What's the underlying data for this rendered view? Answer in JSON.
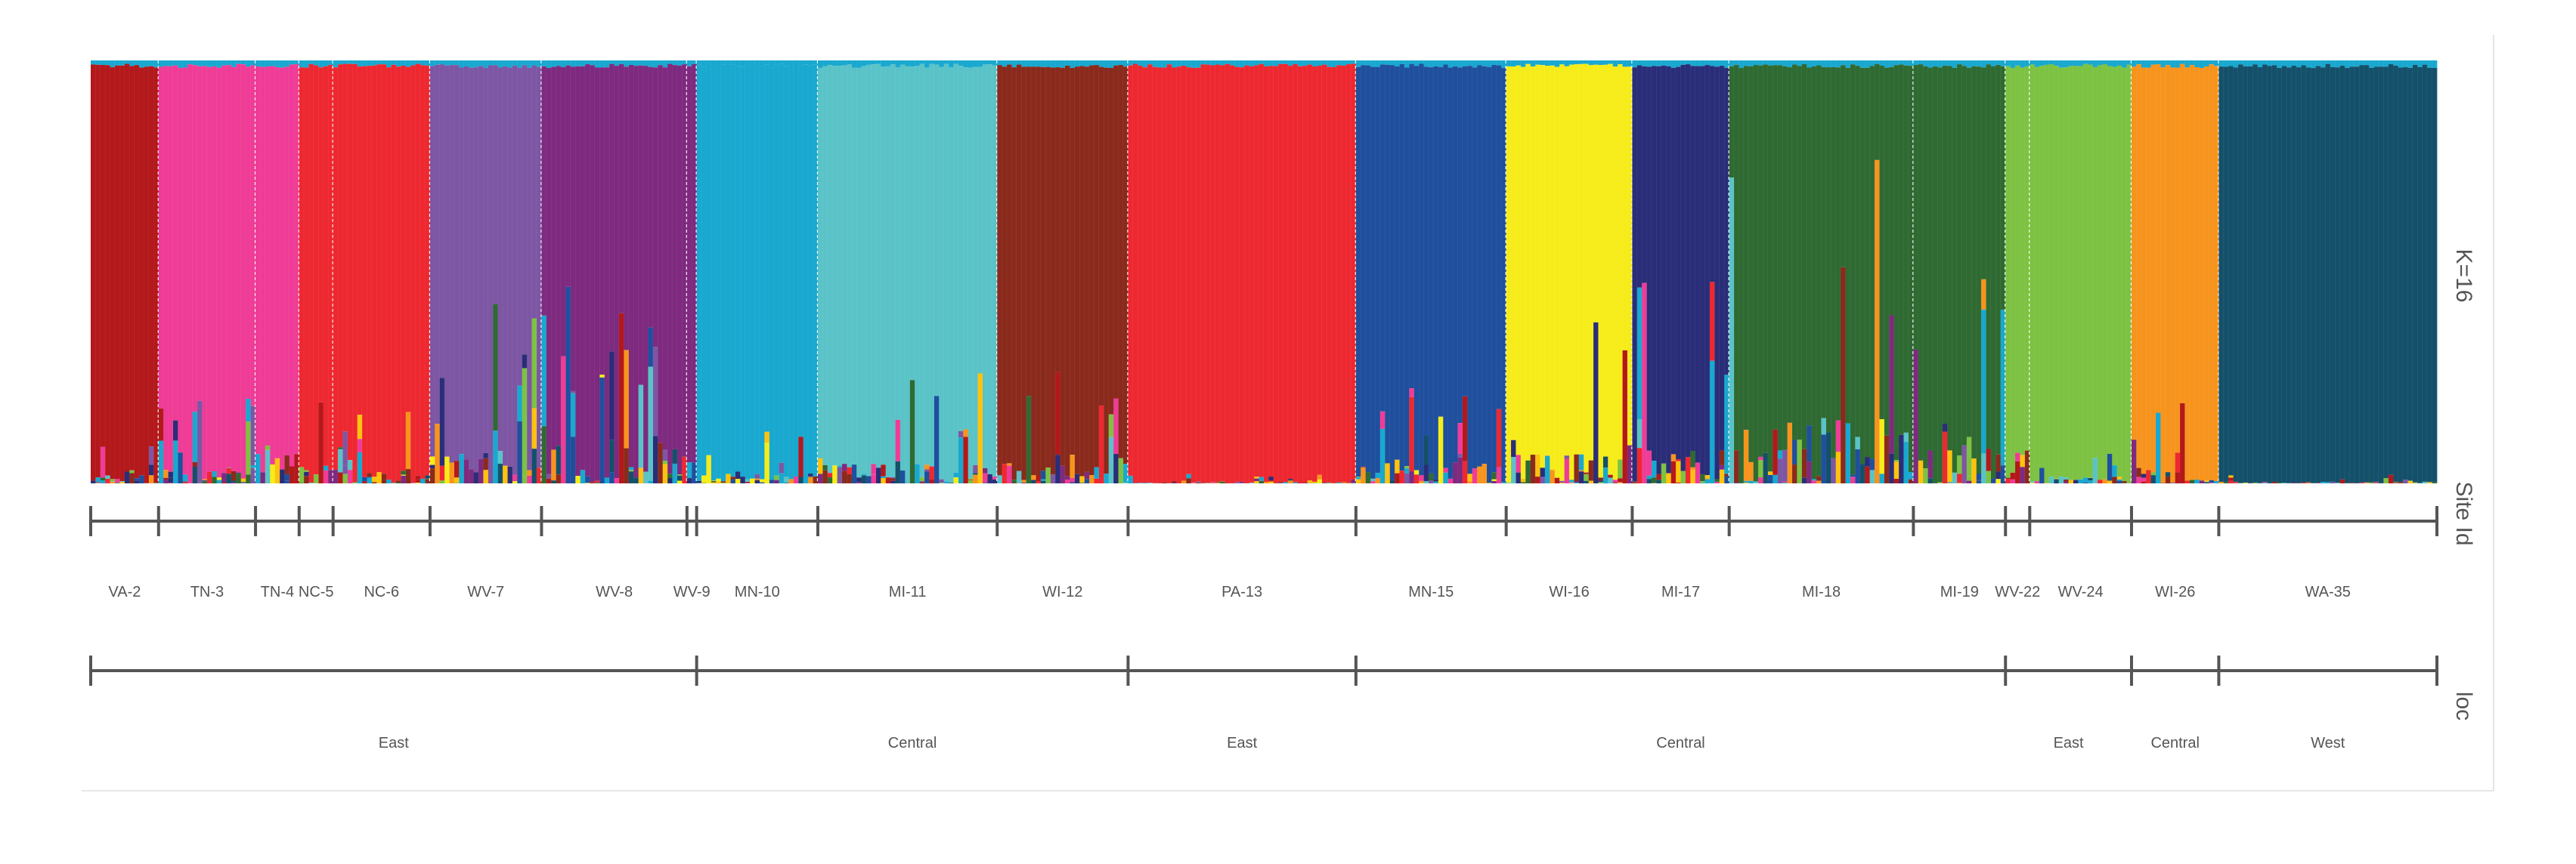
{
  "chart_data": {
    "type": "bar",
    "stacked": true,
    "panel_label": "K=16",
    "ylim": [
      0,
      1
    ],
    "cluster_colors": {
      "darkred": "#b3181b",
      "pink": "#ef3c97",
      "red": "#ee2830",
      "purple": "#7d56a4",
      "plum": "#7e2a7f",
      "cyan": "#19a8cf",
      "aqua": "#5ac3c8",
      "brown": "#8a2a1c",
      "blue": "#1f4f9d",
      "yellow": "#f6ec1a",
      "navy": "#2a2d78",
      "green": "#2f6a32",
      "lime": "#7dc242",
      "orange": "#f7941e",
      "teal": "#14506a",
      "gold": "#ffc20e"
    },
    "sites": [
      {
        "label": "VA-2",
        "n": 14,
        "majority": "darkred",
        "admix": 0.05
      },
      {
        "label": "TN-3",
        "n": 20,
        "majority": "pink",
        "admix": 0.1
      },
      {
        "label": "TN-4",
        "n": 9,
        "majority": "pink",
        "admix": 0.35
      },
      {
        "label": "NC-5",
        "n": 7,
        "majority": "red",
        "admix": 0.12
      },
      {
        "label": "NC-6",
        "n": 20,
        "majority": "red",
        "admix": 0.08
      },
      {
        "label": "WV-7",
        "n": 23,
        "majority": "purple",
        "admix": 0.2
      },
      {
        "label": "WV-8",
        "n": 30,
        "majority": "plum",
        "admix": 0.25
      },
      {
        "label": "WV-9",
        "n": 2,
        "majority": "plum",
        "admix": 0.3
      },
      {
        "label": "MN-10",
        "n": 25,
        "majority": "cyan",
        "admix": 0.06
      },
      {
        "label": "MI-11",
        "n": 37,
        "majority": "aqua",
        "admix": 0.12
      },
      {
        "label": "WI-12",
        "n": 27,
        "majority": "brown",
        "admix": 0.12
      },
      {
        "label": "PA-13",
        "n": 47,
        "majority": "red",
        "admix": 0.01
      },
      {
        "label": "MN-15",
        "n": 31,
        "majority": "blue",
        "admix": 0.12
      },
      {
        "label": "WI-16",
        "n": 26,
        "majority": "yellow",
        "admix": 0.18
      },
      {
        "label": "MI-17",
        "n": 20,
        "majority": "navy",
        "admix": 0.22
      },
      {
        "label": "MI-18",
        "n": 38,
        "majority": "green",
        "admix": 0.4
      },
      {
        "label": "MI-19",
        "n": 19,
        "majority": "green",
        "admix": 0.25
      },
      {
        "label": "WV-22",
        "n": 5,
        "majority": "lime",
        "admix": 0.08
      },
      {
        "label": "WV-24",
        "n": 21,
        "majority": "lime",
        "admix": 0.04
      },
      {
        "label": "WI-26",
        "n": 18,
        "majority": "orange",
        "admix": 0.1
      },
      {
        "label": "WA-35",
        "n": 45,
        "majority": "teal",
        "admix": 0.01
      }
    ],
    "site_track_label": "Site Id",
    "loc_track_label": "loc",
    "loc_groups": [
      {
        "label": "East",
        "sites": [
          "VA-2",
          "TN-3",
          "TN-4",
          "NC-5",
          "NC-6",
          "WV-7",
          "WV-8",
          "WV-9"
        ]
      },
      {
        "label": "Central",
        "sites": [
          "MN-10",
          "MI-11",
          "WI-12"
        ]
      },
      {
        "label": "East",
        "sites": [
          "PA-13"
        ]
      },
      {
        "label": "Central",
        "sites": [
          "MN-15",
          "WI-16",
          "MI-17",
          "MI-18",
          "MI-19"
        ]
      },
      {
        "label": "East",
        "sites": [
          "WV-22",
          "WV-24"
        ]
      },
      {
        "label": "Central",
        "sites": [
          "WI-26"
        ]
      },
      {
        "label": "West",
        "sites": [
          "WA-35"
        ]
      }
    ]
  }
}
